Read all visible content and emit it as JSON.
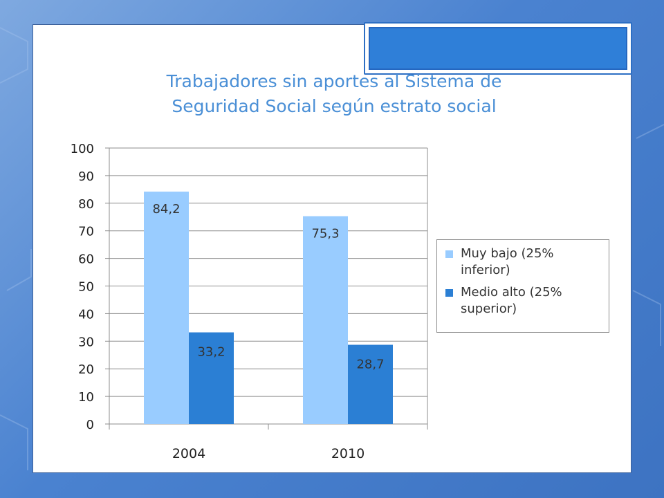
{
  "slide": {
    "title_line1": "Trabajadores sin aportes al Sistema de",
    "title_line2": "Seguridad Social  según estrato social"
  },
  "chart_data": {
    "type": "bar",
    "title": "Trabajadores sin aportes al Sistema de Seguridad Social  según estrato social",
    "categories": [
      "2004",
      "2010"
    ],
    "series": [
      {
        "name": "Muy bajo (25% inferior)",
        "values": [
          84.2,
          75.3
        ],
        "labels": [
          "84,2",
          "75,3"
        ],
        "color": "#99ccff"
      },
      {
        "name": "Medio alto (25% superior)",
        "values": [
          33.2,
          28.7
        ],
        "labels": [
          "33,2",
          "28,7"
        ],
        "color": "#2b7fd4"
      }
    ],
    "ylim": [
      0,
      100
    ],
    "yticks": [
      "0",
      "10",
      "20",
      "30",
      "40",
      "50",
      "60",
      "70",
      "80",
      "90",
      "100"
    ],
    "grid": true,
    "legend_position": "right"
  },
  "legend": {
    "item1_line1": "Muy bajo (25%",
    "item1_line2": "inferior)",
    "item2_line1": "Medio alto (25%",
    "item2_line2": "superior)"
  },
  "colors": {
    "accent": "#2f7fd8",
    "title": "#4a8fd6",
    "bar_light": "#99ccff",
    "bar_dark": "#2b7fd4"
  }
}
